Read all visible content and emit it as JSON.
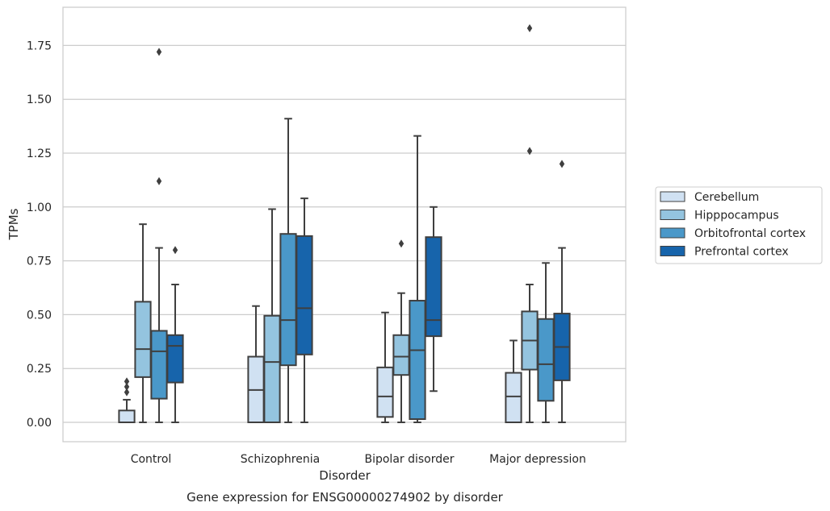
{
  "chart_data": {
    "type": "box",
    "title": "",
    "caption": "Gene expression for ENSG00000274902 by disorder",
    "xlabel": "Disorder",
    "ylabel": "TPMs",
    "ylim": [
      -0.09,
      1.935
    ],
    "yticks": [
      "0.00",
      "0.25",
      "0.50",
      "0.75",
      "1.00",
      "1.25",
      "1.50",
      "1.75"
    ],
    "grid": "horizontal",
    "legend_position": "right",
    "categories": [
      "Control",
      "Schizophrenia",
      "Bipolar disorder",
      "Major depression"
    ],
    "series": [
      {
        "name": "Cerebellum",
        "color": "#d0e1f2",
        "boxes": [
          {
            "min": 0.0,
            "q1": 0.0,
            "median": 0.0,
            "q3": 0.055,
            "max": 0.105,
            "outliers": [
              0.14,
              0.165,
              0.19
            ]
          },
          {
            "min": 0.0,
            "q1": 0.0,
            "median": 0.15,
            "q3": 0.305,
            "max": 0.54,
            "outliers": []
          },
          {
            "min": 0.0,
            "q1": 0.025,
            "median": 0.12,
            "q3": 0.255,
            "max": 0.51,
            "outliers": []
          },
          {
            "min": 0.0,
            "q1": 0.0,
            "median": 0.12,
            "q3": 0.23,
            "max": 0.38,
            "outliers": []
          }
        ]
      },
      {
        "name": "Hipppocampus",
        "color": "#94c4df",
        "boxes": [
          {
            "min": 0.0,
            "q1": 0.21,
            "median": 0.34,
            "q3": 0.56,
            "max": 0.92,
            "outliers": []
          },
          {
            "min": 0.0,
            "q1": 0.0,
            "median": 0.28,
            "q3": 0.495,
            "max": 0.99,
            "outliers": []
          },
          {
            "min": 0.0,
            "q1": 0.22,
            "median": 0.305,
            "q3": 0.405,
            "max": 0.6,
            "outliers": [
              0.83
            ]
          },
          {
            "min": 0.0,
            "q1": 0.245,
            "median": 0.38,
            "q3": 0.515,
            "max": 0.64,
            "outliers": [
              1.26,
              1.83
            ]
          }
        ]
      },
      {
        "name": "Orbitofrontal cortex",
        "color": "#4a98c9",
        "boxes": [
          {
            "min": 0.0,
            "q1": 0.11,
            "median": 0.33,
            "q3": 0.425,
            "max": 0.81,
            "outliers": [
              1.12,
              1.72
            ]
          },
          {
            "min": 0.0,
            "q1": 0.265,
            "median": 0.475,
            "q3": 0.875,
            "max": 1.41,
            "outliers": []
          },
          {
            "min": 0.0,
            "q1": 0.015,
            "median": 0.335,
            "q3": 0.565,
            "max": 1.33,
            "outliers": []
          },
          {
            "min": 0.0,
            "q1": 0.1,
            "median": 0.27,
            "q3": 0.48,
            "max": 0.74,
            "outliers": []
          }
        ]
      },
      {
        "name": "Prefrontal cortex",
        "color": "#1764ab",
        "boxes": [
          {
            "min": 0.0,
            "q1": 0.185,
            "median": 0.355,
            "q3": 0.405,
            "max": 0.64,
            "outliers": [
              0.8
            ]
          },
          {
            "min": 0.0,
            "q1": 0.315,
            "median": 0.53,
            "q3": 0.865,
            "max": 1.04,
            "outliers": []
          },
          {
            "min": 0.145,
            "q1": 0.4,
            "median": 0.475,
            "q3": 0.86,
            "max": 1.0,
            "outliers": []
          },
          {
            "min": 0.0,
            "q1": 0.195,
            "median": 0.35,
            "q3": 0.505,
            "max": 0.81,
            "outliers": [
              1.2
            ]
          }
        ]
      }
    ]
  }
}
